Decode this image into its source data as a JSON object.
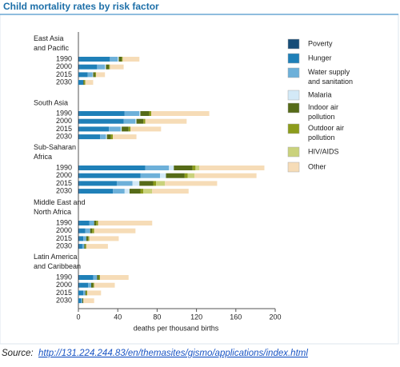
{
  "chart_data": {
    "type": "stacked-barh",
    "title": "Child mortality rates by risk factor",
    "xlabel": "deaths per thousand births",
    "groups": [
      "East Asia\nand Pacific",
      "South Asia",
      "Sub-Saharan\nAfrica",
      "Middle East and\nNorth Africa",
      "Latin America\nand Caribbean"
    ],
    "categories": [
      "1990",
      "2000",
      "2015",
      "2030",
      "1990",
      "2000",
      "2015",
      "2030",
      "1990",
      "2000",
      "2015",
      "2030",
      "1990",
      "2000",
      "2015",
      "2030",
      "1990",
      "2000",
      "2015",
      "2030"
    ],
    "xlim": [
      0,
      200
    ],
    "xticks": [
      0,
      40,
      80,
      120,
      160,
      200
    ],
    "series": [
      {
        "name": "Poverty",
        "color": "#174d78",
        "values": [
          1,
          1,
          0.5,
          0,
          1,
          1,
          1,
          1,
          1,
          1,
          1,
          1,
          1,
          1,
          1,
          1,
          1,
          1,
          0,
          0
        ]
      },
      {
        "name": "Hunger",
        "color": "#1f80b8",
        "values": [
          31,
          18,
          9,
          5,
          46,
          45,
          30,
          21,
          67,
          62,
          38,
          34,
          10,
          6,
          4,
          3,
          14,
          9,
          5,
          3
        ]
      },
      {
        "name": "Water supply\nand sanitation",
        "color": "#6db0d9",
        "values": [
          8,
          8,
          5,
          0,
          15,
          12,
          12,
          6,
          24,
          20,
          16,
          12,
          5,
          5,
          3,
          2,
          4,
          3,
          2,
          1
        ]
      },
      {
        "name": "Malaria",
        "color": "#d3e9f7",
        "values": [
          1,
          1,
          0.5,
          0,
          1,
          1,
          1,
          1,
          5,
          6,
          7,
          5,
          0,
          0,
          0,
          0,
          0,
          0,
          0,
          0
        ]
      },
      {
        "name": "Indoor air\npollution",
        "color": "#566b18",
        "values": [
          3,
          3,
          2,
          1,
          9,
          7,
          7,
          4,
          19,
          19,
          14,
          11,
          2,
          2,
          2,
          1,
          2,
          2,
          1,
          1
        ]
      },
      {
        "name": "Outdoor air\npollution",
        "color": "#8c9c1c",
        "values": [
          1,
          1,
          1,
          1,
          2,
          2,
          2,
          2,
          3,
          3,
          3,
          3,
          2,
          2,
          1,
          1,
          1,
          1,
          1,
          0
        ]
      },
      {
        "name": "HIV/AIDS",
        "color": "#cad27c",
        "values": [
          0,
          0,
          0,
          0,
          0,
          0,
          0,
          0,
          4,
          7,
          9,
          9,
          0,
          0,
          0,
          0,
          0,
          0,
          0,
          0
        ]
      },
      {
        "name": "Other",
        "color": "#f6dcb7",
        "values": [
          17,
          14,
          9,
          8,
          59,
          42,
          31,
          24,
          66,
          63,
          53,
          37,
          55,
          42,
          30,
          22,
          29,
          21,
          14,
          11
        ]
      }
    ],
    "source_label": "Source:",
    "source_url": "http://131.224.244.83/en/themasites/gismo/applications/index.html"
  }
}
